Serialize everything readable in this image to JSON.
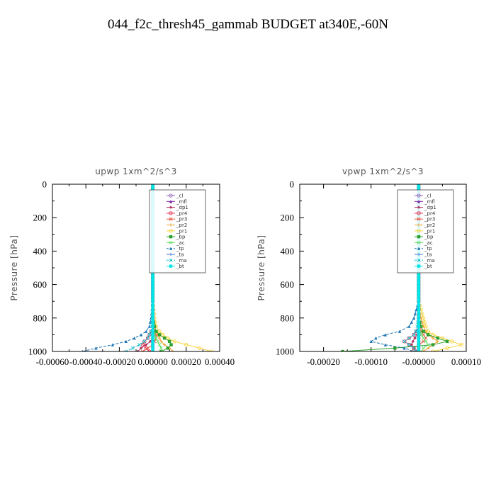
{
  "title": "044_f2c_thresh45_gammab  BUDGET at340E,-60N",
  "colors": {
    "_cl": "#9467bd",
    "_mfl": "#7b1fa2",
    "_dp1": "#b03060",
    "_pr4": "#e0304f",
    "_pr3": "#e8533a",
    "_pr2": "#f0a030",
    "_pr1": "#f5d33a",
    "_bp": "#2ca02c",
    "_ac": "#66dd66",
    "_tp": "#1f77b4",
    "_ta": "#3a7fd5",
    "_ma": "#17becf",
    "_bt": "#00e5e5"
  },
  "chart_data": [
    {
      "type": "line",
      "title": "upwp   1xm^2/s^3",
      "ylabel": "Pressure [hPa]",
      "xlim": [
        -0.0006,
        0.0004
      ],
      "ylim": [
        1000,
        0
      ],
      "x_ticks": [
        "-0.00060",
        "-0.00040",
        "-0.00020",
        "0.00000",
        "0.00020",
        "0.00040"
      ],
      "x_tick_values": [
        -0.0006,
        -0.0004,
        -0.0002,
        0,
        0.0002,
        0.0004
      ],
      "y_ticks": [
        0,
        200,
        400,
        600,
        800,
        1000
      ],
      "legend_position": "top-right",
      "pressure": [
        0,
        100,
        200,
        300,
        400,
        500,
        600,
        700,
        750,
        800,
        850,
        880,
        900,
        920,
        940,
        960,
        980,
        1000
      ],
      "series": [
        {
          "name": "_cl",
          "values": [
            0,
            0,
            0,
            0,
            0,
            0,
            0,
            0,
            0,
            0,
            0,
            0,
            0,
            0,
            0,
            0,
            0,
            0
          ]
        },
        {
          "name": "_mfl",
          "values": [
            0,
            0,
            0,
            0,
            0,
            0,
            0,
            0,
            0,
            0,
            0,
            0,
            0,
            0,
            0,
            0,
            0,
            0
          ]
        },
        {
          "name": "_dp1",
          "values": [
            0,
            0,
            0,
            0,
            0,
            0,
            0,
            0,
            0,
            0,
            0,
            0,
            0,
            0,
            -1.5e-05,
            -4e-05,
            -7e-05,
            -9e-05
          ]
        },
        {
          "name": "_pr4",
          "values": [
            0,
            0,
            0,
            0,
            0,
            0,
            0,
            0,
            0,
            0,
            0,
            -1e-05,
            -2e-05,
            -3e-05,
            -5e-05,
            -6e-05,
            -4e-05,
            -2e-05
          ]
        },
        {
          "name": "_pr3",
          "values": [
            0,
            0,
            0,
            0,
            0,
            0,
            0,
            0,
            0,
            0,
            5e-06,
            1e-05,
            2e-05,
            2e-05,
            1e-05,
            0,
            -3e-05,
            -6e-05
          ]
        },
        {
          "name": "_pr2",
          "values": [
            0,
            0,
            0,
            0,
            0,
            0,
            0,
            0,
            0,
            5e-06,
            1e-05,
            2e-05,
            3e-05,
            4e-05,
            5e-05,
            7e-05,
            0.0001,
            0.00012
          ]
        },
        {
          "name": "_pr1",
          "values": [
            0,
            0,
            0,
            0,
            0,
            0,
            0,
            0,
            5e-06,
            1e-05,
            2e-05,
            4e-05,
            6e-05,
            9e-05,
            0.00013,
            0.0002,
            0.00028,
            0.00035
          ]
        },
        {
          "name": "_bp",
          "values": [
            0,
            0,
            0,
            0,
            0,
            0,
            0,
            0,
            0,
            0,
            1e-05,
            2e-05,
            4e-05,
            7e-05,
            0.0001,
            0.00011,
            9e-05,
            5e-05
          ]
        },
        {
          "name": "_ac",
          "values": [
            0,
            0,
            0,
            0,
            0,
            0,
            0,
            0,
            0,
            0,
            0,
            5e-06,
            1e-05,
            2e-05,
            3e-05,
            4e-05,
            5e-05,
            6e-05
          ]
        },
        {
          "name": "_tp",
          "values": [
            0,
            0,
            0,
            0,
            0,
            0,
            0,
            0,
            -5e-06,
            -1e-05,
            -2e-05,
            -4e-05,
            -7e-05,
            -0.00011,
            -0.00016,
            -0.00024,
            -0.00034,
            -0.00042
          ]
        },
        {
          "name": "_ta",
          "values": [
            0,
            0,
            0,
            0,
            0,
            0,
            0,
            0,
            0,
            0,
            0,
            0,
            0,
            0,
            0,
            0,
            0,
            0
          ]
        },
        {
          "name": "_ma",
          "values": [
            0,
            0,
            0,
            0,
            0,
            0,
            0,
            0,
            0,
            0,
            -5e-06,
            -1e-05,
            -2e-05,
            -3e-05,
            -5e-05,
            -8e-05,
            -0.00012,
            -0.00016
          ]
        },
        {
          "name": "_bt",
          "values": [
            0,
            0,
            0,
            0,
            0,
            0,
            0,
            0,
            0,
            0,
            0,
            0,
            0,
            0,
            0,
            0,
            0,
            0
          ]
        }
      ]
    },
    {
      "type": "line",
      "title": "vpwp   1xm^2/s^3",
      "ylabel": "Pressure [hPa]",
      "xlim": [
        -0.00025,
        0.0001
      ],
      "ylim": [
        1000,
        0
      ],
      "x_ticks": [
        "-0.00020",
        "-0.00010",
        "-0.00000",
        "0.00010"
      ],
      "x_tick_values": [
        -0.0002,
        -0.0001,
        0,
        0.0001
      ],
      "y_ticks": [
        0,
        200,
        400,
        600,
        800,
        1000
      ],
      "legend_position": "top-right",
      "pressure": [
        0,
        100,
        200,
        300,
        400,
        500,
        600,
        700,
        750,
        800,
        850,
        880,
        900,
        920,
        940,
        960,
        980,
        1000
      ],
      "series": [
        {
          "name": "_cl",
          "values": [
            0,
            0,
            0,
            0,
            0,
            0,
            0,
            0,
            0,
            0,
            0,
            0,
            0,
            0,
            0,
            0,
            0,
            0
          ]
        },
        {
          "name": "_mfl",
          "values": [
            0,
            0,
            0,
            0,
            0,
            0,
            0,
            0,
            0,
            0,
            0,
            0,
            0,
            0,
            0,
            0,
            0,
            0
          ]
        },
        {
          "name": "_dp1",
          "values": [
            0,
            0,
            0,
            0,
            0,
            0,
            0,
            0,
            0,
            0,
            0,
            0,
            -3e-06,
            -8e-06,
            -1.2e-05,
            -1.5e-05,
            -1e-05,
            -5e-06
          ]
        },
        {
          "name": "_pr4",
          "values": [
            0,
            0,
            0,
            0,
            0,
            0,
            0,
            0,
            0,
            0,
            0,
            -5e-06,
            -1e-05,
            -2e-05,
            -3e-05,
            -2e-05,
            -1e-05,
            -5e-06
          ]
        },
        {
          "name": "_pr3",
          "values": [
            0,
            0,
            0,
            0,
            0,
            0,
            0,
            0,
            0,
            0,
            3e-06,
            6e-06,
            1e-05,
            1.5e-05,
            1e-05,
            0,
            -1e-05,
            -1.5e-05
          ]
        },
        {
          "name": "_pr2",
          "values": [
            0,
            0,
            0,
            0,
            0,
            0,
            0,
            0,
            0,
            5e-06,
            1e-05,
            1.5e-05,
            2e-05,
            3e-05,
            4e-05,
            3e-05,
            2e-05,
            1e-05
          ]
        },
        {
          "name": "_pr1",
          "values": [
            0,
            0,
            0,
            0,
            0,
            0,
            0,
            0,
            5e-06,
            1e-05,
            1.5e-05,
            2e-05,
            3e-05,
            5e-05,
            7e-05,
            9e-05,
            6e-05,
            3e-05
          ]
        },
        {
          "name": "_bp",
          "values": [
            0,
            0,
            0,
            0,
            0,
            0,
            0,
            0,
            0,
            0,
            5e-06,
            1e-05,
            2e-05,
            4e-05,
            6e-05,
            3e-05,
            -5e-05,
            -0.00016
          ]
        },
        {
          "name": "_ac",
          "values": [
            0,
            0,
            0,
            0,
            0,
            0,
            0,
            0,
            0,
            0,
            0,
            3e-06,
            6e-06,
            1e-05,
            1.5e-05,
            2e-05,
            1e-05,
            5e-06
          ]
        },
        {
          "name": "_tp",
          "values": [
            0,
            0,
            0,
            0,
            0,
            0,
            0,
            0,
            -5e-06,
            -1e-05,
            -2e-05,
            -4e-05,
            -7e-05,
            -9e-05,
            -0.0001,
            -7e-05,
            -3e-05,
            -1e-05
          ]
        },
        {
          "name": "_ta",
          "values": [
            0,
            0,
            0,
            0,
            0,
            0,
            0,
            0,
            0,
            0,
            0,
            0,
            0,
            0,
            0,
            0,
            0,
            0
          ]
        },
        {
          "name": "_ma",
          "values": [
            0,
            0,
            0,
            0,
            0,
            0,
            0,
            0,
            0,
            0,
            -3e-06,
            -6e-06,
            -1e-05,
            -2e-05,
            -3e-05,
            -2e-05,
            -1e-05,
            -5e-06
          ]
        },
        {
          "name": "_bt",
          "values": [
            0,
            0,
            0,
            0,
            0,
            0,
            0,
            0,
            0,
            0,
            0,
            0,
            0,
            0,
            0,
            0,
            0,
            0
          ]
        }
      ]
    }
  ]
}
